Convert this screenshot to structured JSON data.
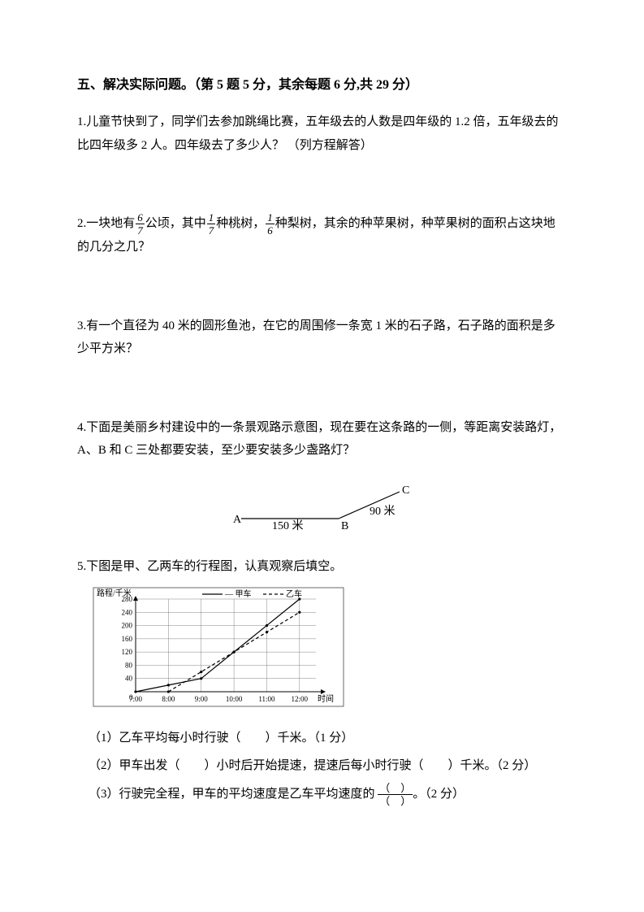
{
  "section": {
    "title": "五、解决实际问题。（第 5 题 5 分，其余每题 6 分,共 29 分）"
  },
  "q1": {
    "text": "1.儿童节快到了，同学们去参加跳绳比赛，五年级去的人数是四年级的 1.2 倍，五年级去的比四年级多 2 人。四年级去了多少人？ （列方程解答）"
  },
  "q2": {
    "p1": "2.一块地有",
    "f1_num": "6",
    "f1_den": "7",
    "p2": "公顷，其中",
    "f2_num": "1",
    "f2_den": "7",
    "p3": "种桃树，",
    "f3_num": "1",
    "f3_den": "6",
    "p4": "种梨树，其余的种苹果树，种苹果树的面积占这块地的几分之几？"
  },
  "q3": {
    "text": "3.有一个直径为 40 米的圆形鱼池，在它的周围修一条宽 1 米的石子路，石子路的面积是多少平方米？"
  },
  "q4": {
    "text": "4.下面是美丽乡村建设中的一条景观路示意图，现在要在这条路的一侧，等距离安装路灯，A、B 和 C 三处都要安装，至少要安装多少盏路灯？",
    "diagram": {
      "labelA": "A",
      "labelB": "B",
      "labelC": "C",
      "distAB": "150 米",
      "distBC": "90 米",
      "stroke": "#000000"
    }
  },
  "q5": {
    "intro": "5.下图是甲、乙两车的行程图，认真观察后填空。",
    "chart": {
      "type": "line",
      "ylabel": "路程/千米",
      "xlabel": "时间",
      "legend_jia": "甲车",
      "legend_yi": "乙车",
      "yticks": [
        0,
        40,
        80,
        120,
        160,
        200,
        240,
        280
      ],
      "xticks": [
        "7:00",
        "8:00",
        "9:00",
        "10:00",
        "11:00",
        "12:00"
      ],
      "jia_points": [
        [
          0,
          0
        ],
        [
          1,
          20
        ],
        [
          2,
          40
        ],
        [
          3,
          120
        ],
        [
          4,
          200
        ],
        [
          5,
          280
        ]
      ],
      "yi_points": [
        [
          1,
          0
        ],
        [
          2,
          60
        ],
        [
          3,
          120
        ],
        [
          4,
          180
        ],
        [
          5,
          240
        ]
      ],
      "colors": {
        "grid": "#666666",
        "axis": "#000000",
        "jia": "#000000",
        "yi": "#000000",
        "background": "#ffffff"
      },
      "styles": {
        "jia_dash": "none",
        "yi_dash": "4,3",
        "line_width": 1.2
      },
      "ylim": [
        0,
        280
      ],
      "xlim": [
        0,
        5.5
      ]
    },
    "sub1": "（1）乙车平均每小时行驶（　　）千米。（1 分）",
    "sub2": "（2）甲车出发（　　）小时后开始提速，提速后每小时行驶（　　）千米。（2 分）",
    "sub3_a": "（3）行驶完全程，甲车的平均速度是乙车平均速度的",
    "sub3_num": "（　）",
    "sub3_den": "（　）",
    "sub3_b": "。（2 分）"
  }
}
